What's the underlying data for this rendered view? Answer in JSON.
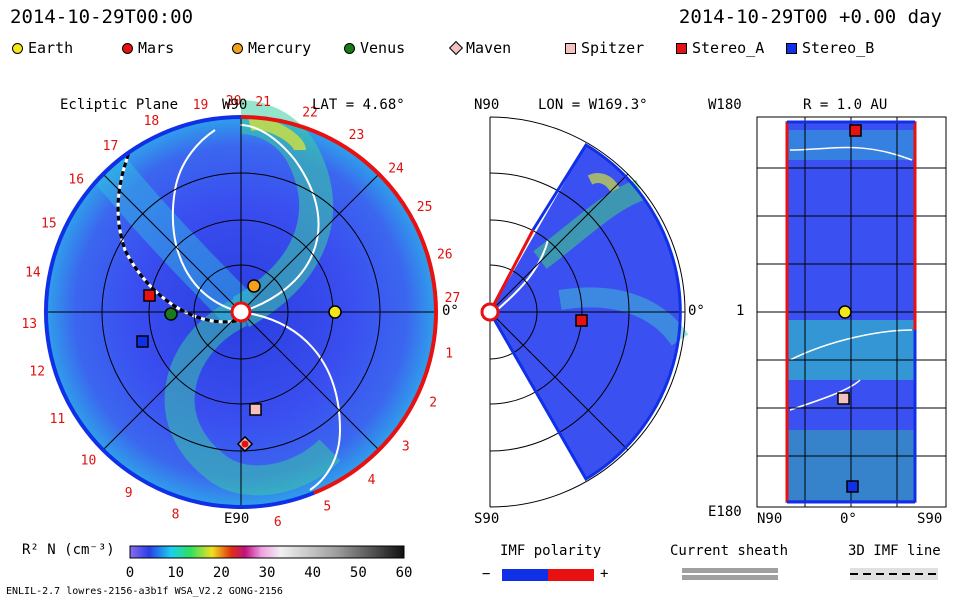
{
  "header": {
    "left": "2014-10-29T00:00",
    "right": "2014-10-29T00 +0.00 day"
  },
  "legend": [
    {
      "name": "Earth",
      "color": "#f5e61a",
      "shape": "circle"
    },
    {
      "name": "Mars",
      "color": "#e81010",
      "shape": "circle"
    },
    {
      "name": "Mercury",
      "color": "#f5a01a",
      "shape": "circle"
    },
    {
      "name": "Venus",
      "color": "#1a7a1a",
      "shape": "circle"
    },
    {
      "name": "Maven",
      "color": "#f4c0c0",
      "shape": "diamond"
    },
    {
      "name": "Spitzer",
      "color": "#f4c0c0",
      "shape": "square"
    },
    {
      "name": "Stereo_A",
      "color": "#e81010",
      "shape": "square"
    },
    {
      "name": "Stereo_B",
      "color": "#1030e8",
      "shape": "square"
    }
  ],
  "panels": {
    "ecliptic": {
      "title": "Ecliptic Plane",
      "w90": "W90",
      "e90": "E90",
      "zero": "0°",
      "lat": "LAT = 4.68°",
      "sector_labels": [
        {
          "t": "19",
          "a": 101
        },
        {
          "t": "20",
          "a": 92
        },
        {
          "t": "21",
          "a": 84
        },
        {
          "t": "22",
          "a": 71
        },
        {
          "t": "23",
          "a": 57
        },
        {
          "t": "24",
          "a": 43
        },
        {
          "t": "25",
          "a": 30
        },
        {
          "t": "26",
          "a": 16
        },
        {
          "t": "27",
          "a": 4
        },
        {
          "t": "1",
          "a": -11
        },
        {
          "t": "2",
          "a": -25
        },
        {
          "t": "3",
          "a": -39
        },
        {
          "t": "4",
          "a": -52
        },
        {
          "t": "5",
          "a": -66
        },
        {
          "t": "6",
          "a": -80
        },
        {
          "t": "8",
          "a": -108
        },
        {
          "t": "9",
          "a": -122
        },
        {
          "t": "10",
          "a": -136
        },
        {
          "t": "11",
          "a": -150
        },
        {
          "t": "12",
          "a": -164
        },
        {
          "t": "13",
          "a": -177
        },
        {
          "t": "14",
          "a": 169
        },
        {
          "t": "15",
          "a": 155
        },
        {
          "t": "16",
          "a": 141
        },
        {
          "t": "17",
          "a": 128
        },
        {
          "t": "18",
          "a": 115
        }
      ]
    },
    "meridional": {
      "n90": "N90",
      "s90": "S90",
      "lon": "LON = W169.3°",
      "zero": "0°"
    },
    "latlon": {
      "title": "R = 1.0 AU",
      "w180": "W180",
      "e180": "E180",
      "mid": "1",
      "n90": "N90",
      "zero": "0°",
      "s90": "S90"
    }
  },
  "colorbar": {
    "label": "R² N (cm⁻³)",
    "ticks": [
      "0",
      "10",
      "20",
      "30",
      "40",
      "50",
      "60"
    ],
    "range": [
      0,
      60
    ]
  },
  "imf": {
    "title": "IMF polarity",
    "minus": "−",
    "plus": "+",
    "sheath": "Current sheath",
    "line3d": "3D IMF line"
  },
  "footer": {
    "left": "ENLIL-2.7 lowres-2156-a3b1f WSA_V2.2 GONG-2156"
  },
  "chart_data": {
    "type": "heatmap",
    "title": "2014-10-29T00:00",
    "variable": "R² N (cm⁻³)",
    "color_range": [
      0,
      60
    ],
    "bodies": [
      {
        "name": "Earth",
        "lon_deg": 0
      },
      {
        "name": "Mars"
      },
      {
        "name": "Mercury"
      },
      {
        "name": "Venus"
      },
      {
        "name": "Maven"
      },
      {
        "name": "Spitzer"
      },
      {
        "name": "Stereo_A"
      },
      {
        "name": "Stereo_B"
      }
    ],
    "ecliptic_lat_deg": 4.68,
    "meridional_lon": "W169.3",
    "radius_au": 1.0
  }
}
